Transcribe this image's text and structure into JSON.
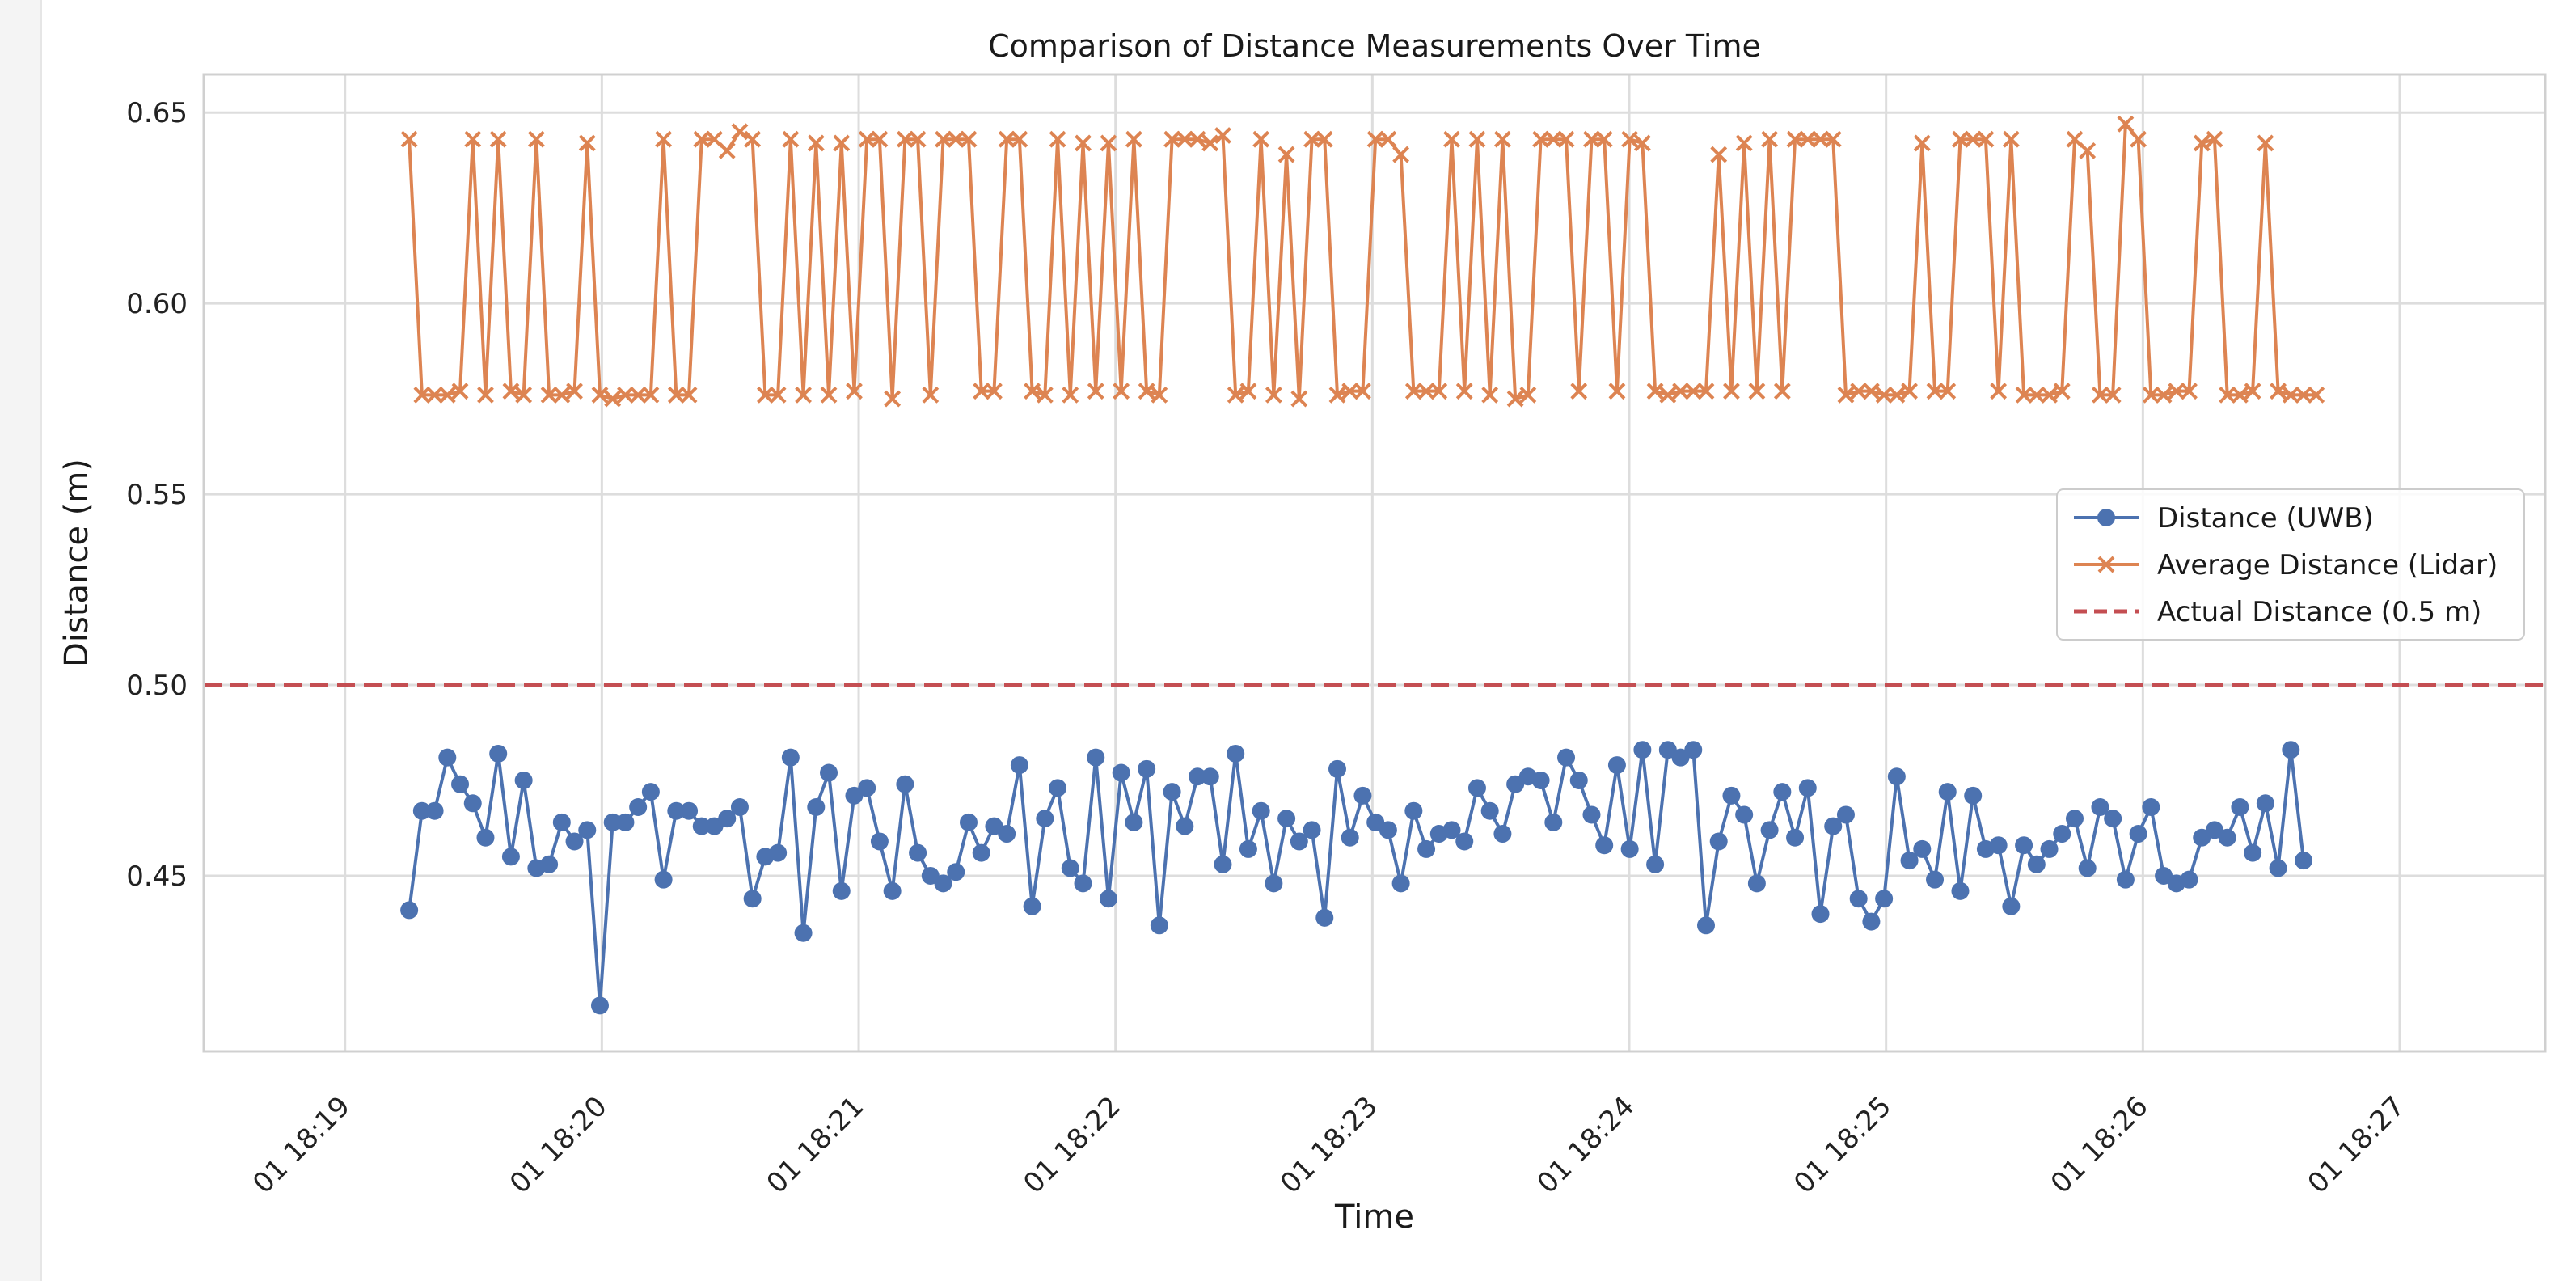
{
  "chart_data": {
    "type": "line",
    "title": "Comparison of Distance Measurements Over Time",
    "xlabel": "Time",
    "ylabel": "Distance (m)",
    "grid": true,
    "legend_position": "center-right",
    "xlim": [
      -1.65,
      25.7
    ],
    "ylim": [
      0.404,
      0.66
    ],
    "x_ticks": [
      {
        "value": 0,
        "label": "01 18:19"
      },
      {
        "value": 3,
        "label": "01 18:20"
      },
      {
        "value": 6,
        "label": "01 18:21"
      },
      {
        "value": 9,
        "label": "01 18:22"
      },
      {
        "value": 12,
        "label": "01 18:23"
      },
      {
        "value": 15,
        "label": "01 18:24"
      },
      {
        "value": 18,
        "label": "01 18:25"
      },
      {
        "value": 21,
        "label": "01 18:26"
      },
      {
        "value": 24,
        "label": "01 18:27"
      }
    ],
    "y_ticks": [
      {
        "value": 0.45,
        "label": "0.45"
      },
      {
        "value": 0.5,
        "label": "0.50"
      },
      {
        "value": 0.55,
        "label": "0.55"
      },
      {
        "value": 0.6,
        "label": "0.60"
      },
      {
        "value": 0.65,
        "label": "0.65"
      }
    ],
    "x_unit_note": "x values are 20-second steps starting at 18:19",
    "series": [
      {
        "name": "Distance (UWB)",
        "color": "#4c72b0",
        "marker": "circle",
        "x_start": 0.75,
        "x_step": 0.1485,
        "values": [
          0.441,
          0.467,
          0.467,
          0.481,
          0.474,
          0.469,
          0.46,
          0.482,
          0.455,
          0.475,
          0.452,
          0.453,
          0.464,
          0.459,
          0.462,
          0.416,
          0.464,
          0.464,
          0.468,
          0.472,
          0.449,
          0.467,
          0.467,
          0.463,
          0.463,
          0.465,
          0.468,
          0.444,
          0.455,
          0.456,
          0.481,
          0.435,
          0.468,
          0.477,
          0.446,
          0.471,
          0.473,
          0.459,
          0.446,
          0.474,
          0.456,
          0.45,
          0.448,
          0.451,
          0.464,
          0.456,
          0.463,
          0.461,
          0.479,
          0.442,
          0.465,
          0.473,
          0.452,
          0.448,
          0.481,
          0.444,
          0.477,
          0.464,
          0.478,
          0.437,
          0.472,
          0.463,
          0.476,
          0.476,
          0.453,
          0.482,
          0.457,
          0.467,
          0.448,
          0.465,
          0.459,
          0.462,
          0.439,
          0.478,
          0.46,
          0.471,
          0.464,
          0.462,
          0.448,
          0.467,
          0.457,
          0.461,
          0.462,
          0.459,
          0.473,
          0.467,
          0.461,
          0.474,
          0.476,
          0.475,
          0.464,
          0.481,
          0.475,
          0.466,
          0.458,
          0.479,
          0.457,
          0.483,
          0.453,
          0.483,
          0.481,
          0.483,
          0.437,
          0.459,
          0.471,
          0.466,
          0.448,
          0.462,
          0.472,
          0.46,
          0.473,
          0.44,
          0.463,
          0.466,
          0.444,
          0.438,
          0.444,
          0.476,
          0.454,
          0.457,
          0.449,
          0.472,
          0.446,
          0.471,
          0.457,
          0.458,
          0.442,
          0.458,
          0.453,
          0.457,
          0.461,
          0.465,
          0.452,
          0.468,
          0.465,
          0.449,
          0.461,
          0.468,
          0.45,
          0.448,
          0.449,
          0.46,
          0.462,
          0.46,
          0.468,
          0.456,
          0.469,
          0.452,
          0.483,
          0.454
        ]
      },
      {
        "name": "Average Distance (Lidar)",
        "color": "#dd8452",
        "marker": "x",
        "x_start": 0.75,
        "x_step": 0.1485,
        "values": [
          0.643,
          0.576,
          0.576,
          0.576,
          0.577,
          0.643,
          0.576,
          0.643,
          0.577,
          0.576,
          0.643,
          0.576,
          0.576,
          0.577,
          0.642,
          0.576,
          0.575,
          0.576,
          0.576,
          0.576,
          0.643,
          0.576,
          0.576,
          0.643,
          0.643,
          0.64,
          0.645,
          0.643,
          0.576,
          0.576,
          0.643,
          0.576,
          0.642,
          0.576,
          0.642,
          0.577,
          0.643,
          0.643,
          0.575,
          0.643,
          0.643,
          0.576,
          0.643,
          0.643,
          0.643,
          0.577,
          0.577,
          0.643,
          0.643,
          0.577,
          0.576,
          0.643,
          0.576,
          0.642,
          0.577,
          0.642,
          0.577,
          0.643,
          0.577,
          0.576,
          0.643,
          0.643,
          0.643,
          0.642,
          0.644,
          0.576,
          0.577,
          0.643,
          0.576,
          0.639,
          0.575,
          0.643,
          0.643,
          0.576,
          0.577,
          0.577,
          0.643,
          0.643,
          0.639,
          0.577,
          0.577,
          0.577,
          0.643,
          0.577,
          0.643,
          0.576,
          0.643,
          0.575,
          0.576,
          0.643,
          0.643,
          0.643,
          0.577,
          0.643,
          0.643,
          0.577,
          0.643,
          0.642,
          0.577,
          0.576,
          0.577,
          0.577,
          0.577,
          0.639,
          0.577,
          0.642,
          0.577,
          0.643,
          0.577,
          0.643,
          0.643,
          0.643,
          0.643,
          0.576,
          0.577,
          0.577,
          0.576,
          0.576,
          0.577,
          0.642,
          0.577,
          0.577,
          0.643,
          0.643,
          0.643,
          0.577,
          0.643,
          0.576,
          0.576,
          0.576,
          0.577,
          0.643,
          0.64,
          0.576,
          0.576,
          0.647,
          0.643,
          0.576,
          0.576,
          0.577,
          0.577,
          0.642,
          0.643,
          0.576,
          0.576,
          0.577,
          0.642,
          0.577,
          0.576,
          0.576,
          0.576
        ]
      },
      {
        "name": "Actual Distance (0.5 m)",
        "color": "#c44e52",
        "style": "dashed",
        "constant": 0.5
      }
    ]
  }
}
